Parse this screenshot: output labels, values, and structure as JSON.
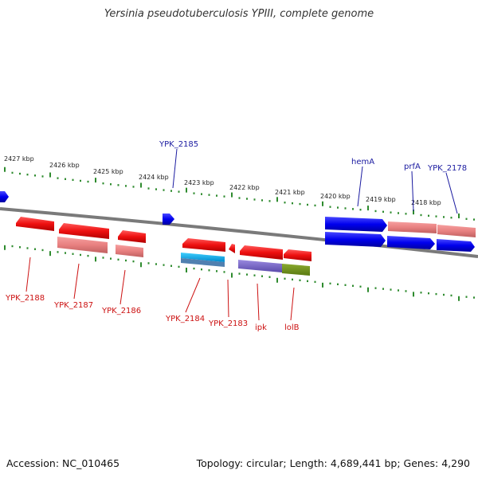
{
  "title": "Yersinia pseudotuberculosis YPIII, complete genome",
  "footer": {
    "accession": "Accession: NC_010465",
    "stats": "Topology: circular; Length: 4,689,441 bp; Genes: 4,290"
  },
  "colors": {
    "forward": "#0000ee",
    "reverse": "#ee0000",
    "forward_label": "#1a1aa0",
    "reverse_label": "#cc1111",
    "ticks": "#2e8b2e",
    "backbone": "#808080"
  },
  "scale_labels": [
    "2427 kbp",
    "2426 kbp",
    "2425 kbp",
    "2424 kbp",
    "2423 kbp",
    "2422 kbp",
    "2421 kbp",
    "2420 kbp",
    "2419 kbp",
    "2418 kbp"
  ],
  "top_gene_labels": [
    "YPK_2185",
    "hemA",
    "prfA",
    "YPK_2178"
  ],
  "bottom_gene_labels": [
    "YPK_2188",
    "YPK_2187",
    "YPK_2186",
    "YPK_2184",
    "YPK_2183",
    "ipk",
    "lolB"
  ]
}
